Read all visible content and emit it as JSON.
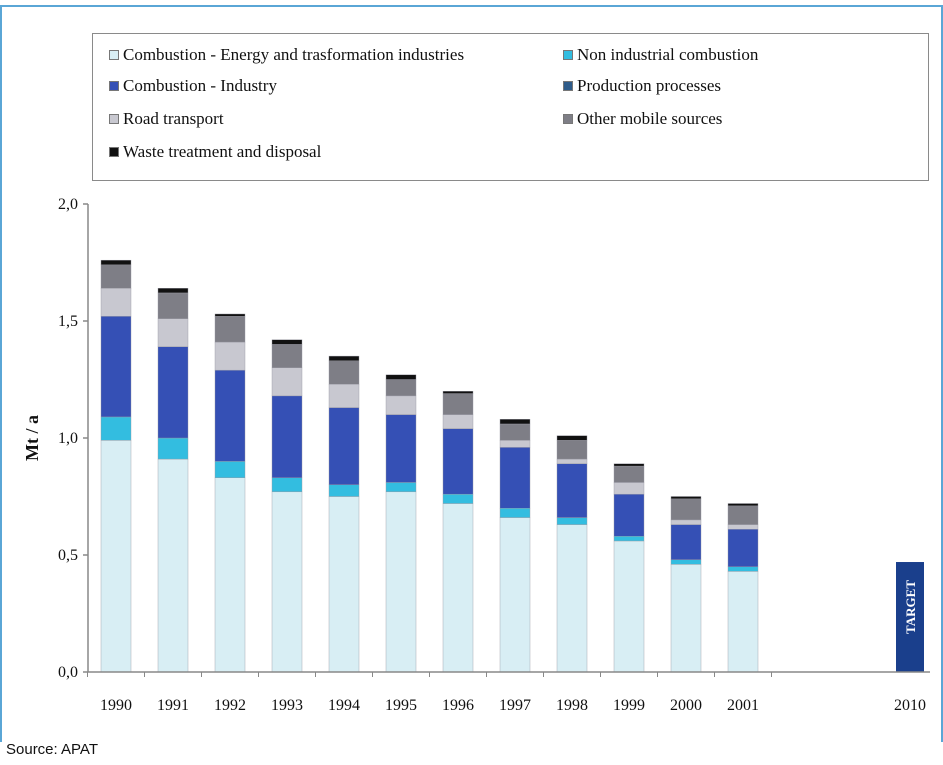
{
  "source": "Source: APAT",
  "chart_data": {
    "type": "bar",
    "stacked": true,
    "ylabel": "Mt / a",
    "ylim": [
      0,
      2.0
    ],
    "yticks": [
      "0,0",
      "0,5",
      "1,0",
      "1,5",
      "2,0"
    ],
    "categories": [
      "1990",
      "1991",
      "1992",
      "1993",
      "1994",
      "1995",
      "1996",
      "1997",
      "1998",
      "1999",
      "2000",
      "2001"
    ],
    "series": [
      {
        "name": "Combustion - Energy and trasformation industries",
        "color": "#d8eef4",
        "values": [
          0.99,
          0.91,
          0.83,
          0.77,
          0.75,
          0.77,
          0.72,
          0.66,
          0.63,
          0.56,
          0.46,
          0.43
        ]
      },
      {
        "name": "Non industrial combustion",
        "color": "#33bde0",
        "values": [
          0.1,
          0.09,
          0.07,
          0.06,
          0.05,
          0.04,
          0.04,
          0.04,
          0.03,
          0.02,
          0.02,
          0.02
        ]
      },
      {
        "name": "Combustion - Industry",
        "color": "#3550b5",
        "values": [
          0.43,
          0.39,
          0.39,
          0.35,
          0.33,
          0.29,
          0.28,
          0.26,
          0.23,
          0.18,
          0.15,
          0.16
        ]
      },
      {
        "name": "Production processes",
        "color": "#2f5c8a",
        "values": [
          0.0,
          0.0,
          0.0,
          0.0,
          0.0,
          0.0,
          0.0,
          0.0,
          0.0,
          0.0,
          0.0,
          0.0
        ]
      },
      {
        "name": "Road transport",
        "color": "#c8c8d0",
        "values": [
          0.12,
          0.12,
          0.12,
          0.12,
          0.1,
          0.08,
          0.06,
          0.03,
          0.02,
          0.05,
          0.02,
          0.02
        ]
      },
      {
        "name": "Other mobile sources",
        "color": "#7e7e86",
        "values": [
          0.1,
          0.11,
          0.11,
          0.1,
          0.1,
          0.07,
          0.09,
          0.07,
          0.08,
          0.07,
          0.09,
          0.08
        ]
      },
      {
        "name": "Waste treatment and disposal",
        "color": "#111111",
        "values": [
          0.02,
          0.02,
          0.01,
          0.02,
          0.02,
          0.02,
          0.01,
          0.02,
          0.02,
          0.01,
          0.01,
          0.01
        ]
      }
    ],
    "target": {
      "year": "2010",
      "value": 0.47,
      "label": "TARGET",
      "color": "#1a3f8c"
    },
    "legend_position": "top",
    "grid": false
  }
}
